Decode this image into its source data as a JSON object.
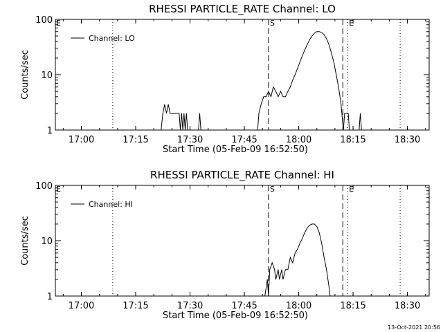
{
  "footer": {
    "timestamp": "13-Oct-2021 20:56"
  },
  "chart_data": [
    {
      "type": "line",
      "title": "RHESSI PARTICLE_RATE Channel: LO",
      "xlabel": "Start Time (05-Feb-09 16:52:50)",
      "ylabel": "Counts/sec",
      "y_scale": "log",
      "ylim": [
        1,
        100
      ],
      "xlim": [
        "16:52:50",
        "18:36:00"
      ],
      "x_ticks": [
        "17:00",
        "17:15",
        "17:30",
        "17:45",
        "18:00",
        "18:15",
        "18:30"
      ],
      "y_ticks": [
        "1",
        "10",
        "100"
      ],
      "legend": {
        "position": "top-left",
        "entries": [
          "Channel: LO"
        ]
      },
      "markers": [
        {
          "time": "17:08:40",
          "style": "dotted",
          "label": ""
        },
        {
          "time": "17:51:40",
          "style": "dashed",
          "label": "S"
        },
        {
          "time": "18:12:10",
          "style": "dashed",
          "label": ""
        },
        {
          "time": "18:13:30",
          "style": "dotted",
          "label": "E"
        },
        {
          "time": "18:28:00",
          "style": "dotted",
          "label": ""
        }
      ],
      "corner_labels": {
        "left": "E"
      },
      "series": [
        {
          "name": "Channel: LO",
          "points": [
            [
              "17:22:00",
              1.0
            ],
            [
              "17:22:30",
              2.0
            ],
            [
              "17:23:00",
              2.9
            ],
            [
              "17:23:30",
              2.0
            ],
            [
              "17:24:00",
              2.9
            ],
            [
              "17:24:30",
              2.0
            ],
            [
              "17:25:00",
              2.0
            ],
            [
              "17:25:30",
              2.0
            ],
            [
              "17:26:00",
              2.0
            ],
            [
              "17:26:30",
              2.0
            ],
            [
              "17:27:00",
              2.0
            ],
            [
              "17:27:20",
              1.0
            ],
            [
              "17:27:40",
              2.0
            ],
            [
              "17:28:00",
              1.0
            ],
            [
              "17:28:20",
              2.0
            ],
            [
              "17:28:40",
              1.0
            ],
            [
              "17:29:00",
              2.0
            ],
            [
              "17:29:20",
              1.0
            ],
            [
              "17:32:20",
              1.0
            ],
            [
              "17:32:40",
              2.0
            ],
            [
              "17:33:00",
              1.0
            ],
            [
              "17:48:40",
              1.0
            ],
            [
              "17:49:00",
              2.0
            ],
            [
              "17:49:40",
              3.0
            ],
            [
              "17:50:20",
              4.0
            ],
            [
              "17:51:00",
              4.0
            ],
            [
              "17:51:40",
              5.0
            ],
            [
              "17:52:20",
              4.0
            ],
            [
              "17:53:00",
              6.0
            ],
            [
              "17:53:40",
              5.0
            ],
            [
              "17:54:20",
              4.0
            ],
            [
              "17:55:00",
              5.0
            ],
            [
              "17:55:40",
              4.0
            ],
            [
              "17:56:20",
              4.0
            ],
            [
              "17:57:00",
              5.0
            ],
            [
              "17:57:40",
              6.0
            ],
            [
              "17:58:20",
              8.0
            ],
            [
              "17:59:00",
              10.0
            ],
            [
              "17:59:40",
              13.0
            ],
            [
              "18:00:20",
              17.0
            ],
            [
              "18:01:00",
              22.0
            ],
            [
              "18:01:40",
              28.0
            ],
            [
              "18:02:20",
              35.0
            ],
            [
              "18:03:00",
              43.0
            ],
            [
              "18:03:40",
              50.0
            ],
            [
              "18:04:20",
              56.0
            ],
            [
              "18:05:00",
              60.0
            ],
            [
              "18:05:40",
              60.0
            ],
            [
              "18:06:20",
              58.0
            ],
            [
              "18:07:00",
              53.0
            ],
            [
              "18:07:40",
              45.0
            ],
            [
              "18:08:20",
              35.0
            ],
            [
              "18:09:00",
              25.0
            ],
            [
              "18:09:40",
              17.0
            ],
            [
              "18:10:20",
              10.0
            ],
            [
              "18:11:00",
              6.0
            ],
            [
              "18:11:40",
              3.0
            ],
            [
              "18:12:20",
              1.0
            ],
            [
              "18:12:40",
              2.0
            ],
            [
              "18:13:20",
              2.0
            ],
            [
              "18:13:40",
              2.0
            ],
            [
              "18:14:00",
              1.0
            ],
            [
              "18:16:40",
              1.0
            ],
            [
              "18:17:00",
              2.0
            ],
            [
              "18:17:20",
              1.0
            ]
          ]
        }
      ]
    },
    {
      "type": "line",
      "title": "RHESSI PARTICLE_RATE Channel: HI",
      "xlabel": "Start Time (05-Feb-09 16:52:50)",
      "ylabel": "Counts/sec",
      "y_scale": "log",
      "ylim": [
        1,
        100
      ],
      "xlim": [
        "16:52:50",
        "18:36:00"
      ],
      "x_ticks": [
        "17:00",
        "17:15",
        "17:30",
        "17:45",
        "18:00",
        "18:15",
        "18:30"
      ],
      "y_ticks": [
        "1",
        "10",
        "100"
      ],
      "legend": {
        "position": "top-left",
        "entries": [
          "Channel: HI"
        ]
      },
      "markers": [
        {
          "time": "17:08:40",
          "style": "dotted",
          "label": ""
        },
        {
          "time": "17:51:40",
          "style": "dashed",
          "label": "S"
        },
        {
          "time": "18:12:10",
          "style": "dashed",
          "label": ""
        },
        {
          "time": "18:13:30",
          "style": "dotted",
          "label": "E"
        },
        {
          "time": "18:28:00",
          "style": "dotted",
          "label": ""
        }
      ],
      "corner_labels": {
        "left": "E"
      },
      "series": [
        {
          "name": "Channel: HI",
          "points": [
            [
              "17:50:40",
              1.0
            ],
            [
              "17:51:20",
              2.0
            ],
            [
              "17:51:40",
              1.0
            ],
            [
              "17:52:00",
              3.0
            ],
            [
              "17:52:40",
              4.0
            ],
            [
              "17:53:20",
              3.0
            ],
            [
              "17:53:40",
              2.0
            ],
            [
              "17:54:20",
              3.0
            ],
            [
              "17:54:40",
              2.0
            ],
            [
              "17:55:20",
              3.0
            ],
            [
              "17:55:40",
              2.0
            ],
            [
              "17:56:20",
              3.0
            ],
            [
              "17:57:00",
              3.0
            ],
            [
              "17:57:40",
              5.0
            ],
            [
              "17:58:20",
              4.0
            ],
            [
              "17:59:00",
              6.0
            ],
            [
              "17:59:40",
              7.0
            ],
            [
              "18:00:20",
              9.0
            ],
            [
              "18:01:00",
              11.0
            ],
            [
              "18:01:40",
              14.0
            ],
            [
              "18:02:20",
              17.0
            ],
            [
              "18:03:00",
              19.0
            ],
            [
              "18:03:40",
              20.0
            ],
            [
              "18:04:20",
              20.0
            ],
            [
              "18:05:00",
              18.0
            ],
            [
              "18:05:40",
              14.0
            ],
            [
              "18:06:20",
              9.0
            ],
            [
              "18:07:00",
              5.0
            ],
            [
              "18:07:40",
              3.0
            ],
            [
              "18:08:20",
              1.5
            ],
            [
              "18:08:40",
              1.0
            ]
          ]
        }
      ]
    }
  ]
}
